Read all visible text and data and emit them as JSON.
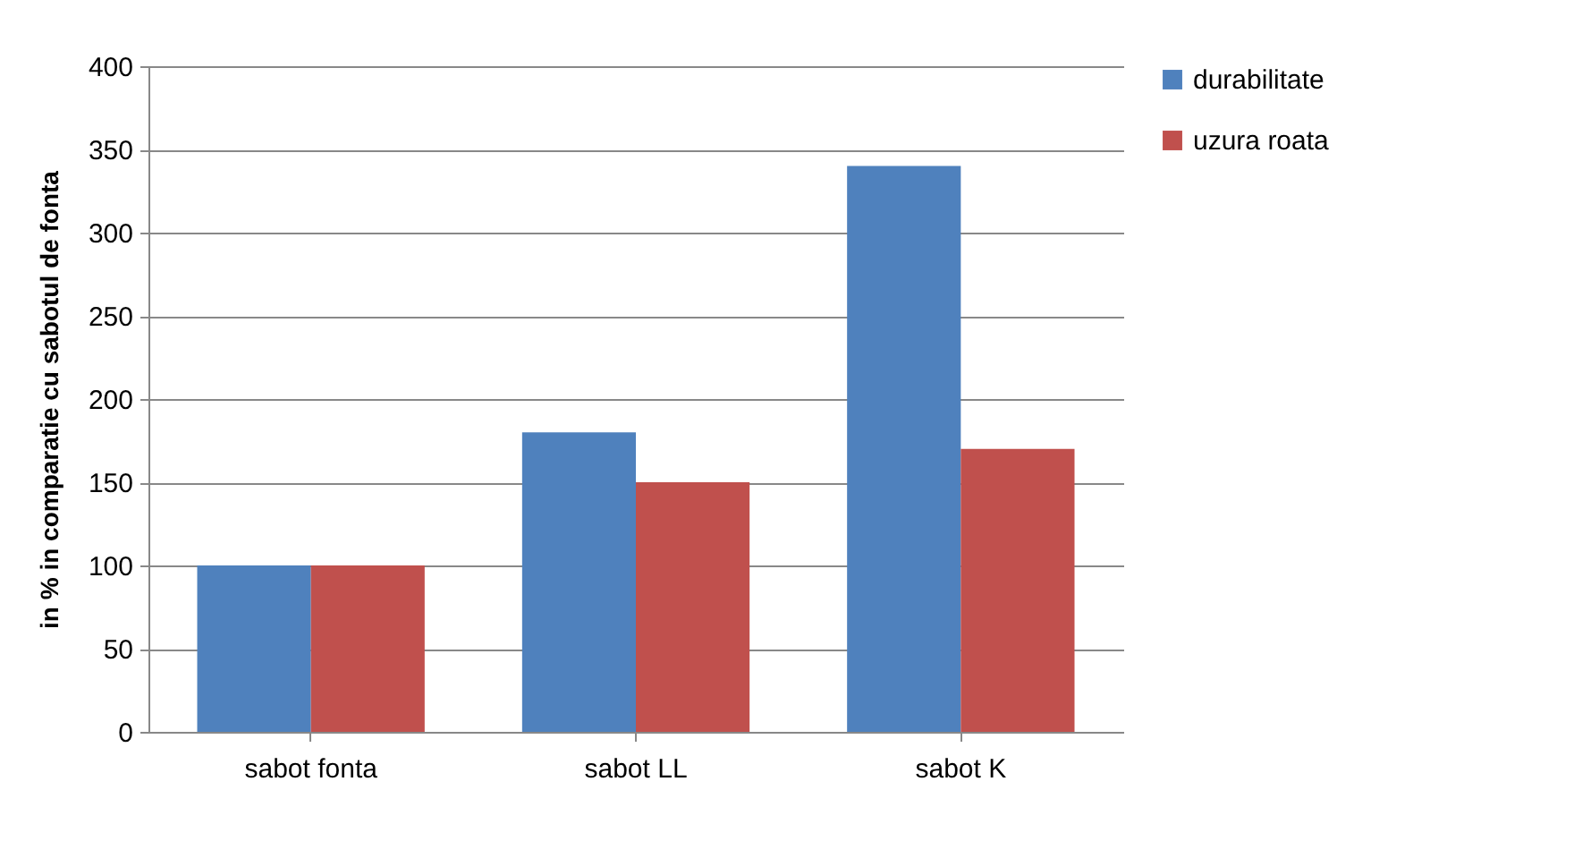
{
  "chart_data": {
    "type": "bar",
    "ylabel": "in % in comparatie cu sabotul de fonta",
    "categories": [
      "sabot fonta",
      "sabot LL",
      "sabot K"
    ],
    "series": [
      {
        "name": "durabilitate",
        "color": "#4f81bd",
        "values": [
          100,
          180,
          340
        ]
      },
      {
        "name": "uzura roata",
        "color": "#c0504d",
        "values": [
          100,
          150,
          170
        ]
      }
    ],
    "ylim": [
      0,
      400
    ],
    "yticks": [
      0,
      50,
      100,
      150,
      200,
      250,
      300,
      350,
      400
    ],
    "grid": "y",
    "legend": "right"
  }
}
